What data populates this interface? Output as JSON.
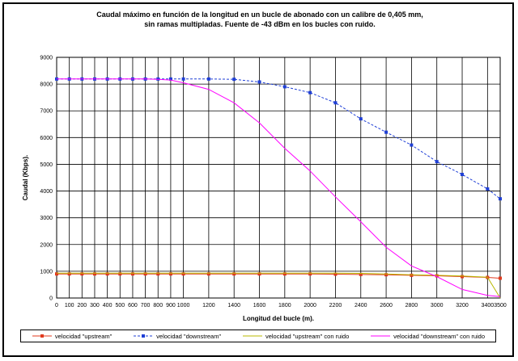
{
  "chart_data": {
    "type": "line",
    "title": "Caudal máximo en función de la longitud en un bucle de abonado con un calibre de 0,405 mm,\nsin ramas multipladas. Fuente de -43 dBm en los bucles con ruido.",
    "xlabel": "Longitud del bucle (m).",
    "ylabel": "Caudal (Kbps).",
    "xlim": [
      0,
      3500
    ],
    "ylim": [
      0,
      9000
    ],
    "x_ticks": [
      0,
      100,
      200,
      300,
      400,
      500,
      600,
      700,
      800,
      900,
      1000,
      1200,
      1400,
      1600,
      1800,
      2000,
      2200,
      2400,
      2600,
      2800,
      3000,
      3200,
      3400,
      3500
    ],
    "y_ticks": [
      0,
      1000,
      2000,
      3000,
      4000,
      5000,
      6000,
      7000,
      8000,
      9000
    ],
    "grid": true,
    "legend_position": "bottom",
    "x": [
      0,
      100,
      200,
      300,
      400,
      500,
      600,
      700,
      800,
      900,
      1000,
      1200,
      1400,
      1600,
      1800,
      2000,
      2200,
      2400,
      2600,
      2800,
      3000,
      3200,
      3400,
      3500
    ],
    "series": [
      {
        "name": "velocidad \"upstream\"",
        "color": "#e03a1e",
        "marker": "square",
        "dash": "solid",
        "values": [
          900,
          900,
          900,
          900,
          900,
          900,
          900,
          900,
          900,
          900,
          900,
          900,
          900,
          900,
          900,
          900,
          890,
          880,
          870,
          850,
          830,
          800,
          770,
          740
        ]
      },
      {
        "name": "velocidad \"downstream\"",
        "color": "#1f3fd6",
        "marker": "square",
        "dash": "dashed",
        "values": [
          8190,
          8190,
          8190,
          8190,
          8190,
          8190,
          8190,
          8190,
          8190,
          8190,
          8190,
          8190,
          8180,
          8080,
          7900,
          7680,
          7300,
          6700,
          6200,
          5720,
          5100,
          4620,
          4080,
          3710
        ]
      },
      {
        "name": "velocidad \"upstream\" con ruido",
        "color": "#b8b800",
        "marker": "none",
        "dash": "solid",
        "values": [
          930,
          930,
          930,
          930,
          930,
          930,
          930,
          930,
          930,
          930,
          930,
          930,
          930,
          930,
          930,
          930,
          930,
          920,
          900,
          870,
          850,
          820,
          780,
          0
        ]
      },
      {
        "name": "velocidad \"downstream\" con ruido",
        "color": "#ff00ff",
        "marker": "none",
        "dash": "solid",
        "values": [
          8190,
          8190,
          8190,
          8190,
          8190,
          8190,
          8190,
          8190,
          8180,
          8150,
          8050,
          7800,
          7300,
          6550,
          5600,
          4750,
          3780,
          2850,
          1900,
          1200,
          800,
          320,
          100,
          50
        ]
      }
    ]
  }
}
